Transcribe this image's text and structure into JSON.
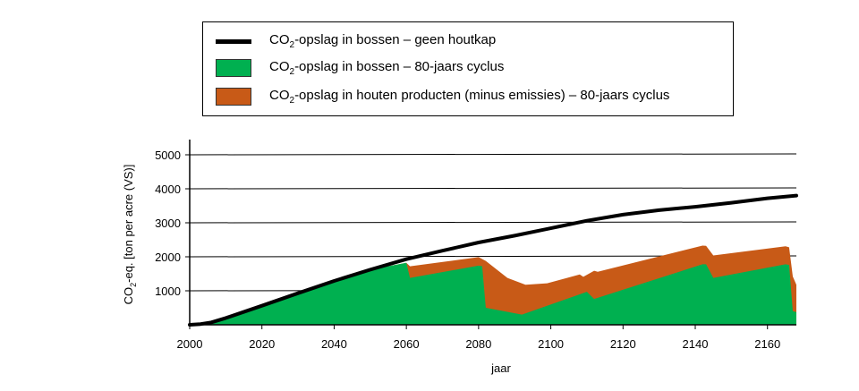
{
  "chart_data": {
    "type": "area",
    "xlabel": "jaar",
    "ylabel": "CO2-eq. [ton per acre (VS)]",
    "xlim": [
      2000,
      2168
    ],
    "ylim": [
      0,
      5300
    ],
    "x_ticks": [
      2000,
      2020,
      2040,
      2060,
      2080,
      2100,
      2120,
      2140,
      2160
    ],
    "y_ticks": [
      1000,
      2000,
      3000,
      4000,
      5000
    ],
    "grid": "horizontal",
    "legend_position": "top",
    "series": [
      {
        "name_parts": [
          "CO",
          "2",
          "-opslag in bossen – geen houtkap"
        ],
        "kind": "line",
        "color": "#000000",
        "points": [
          [
            2000,
            0
          ],
          [
            2003,
            20
          ],
          [
            2006,
            70
          ],
          [
            2010,
            200
          ],
          [
            2020,
            560
          ],
          [
            2030,
            930
          ],
          [
            2040,
            1290
          ],
          [
            2050,
            1620
          ],
          [
            2060,
            1930
          ],
          [
            2070,
            2180
          ],
          [
            2080,
            2420
          ],
          [
            2090,
            2620
          ],
          [
            2100,
            2840
          ],
          [
            2110,
            3060
          ],
          [
            2120,
            3240
          ],
          [
            2130,
            3370
          ],
          [
            2140,
            3470
          ],
          [
            2150,
            3590
          ],
          [
            2160,
            3720
          ],
          [
            2168,
            3800
          ]
        ]
      },
      {
        "name_parts": [
          "CO",
          "2",
          "-opslag in houten producten (minus emissies) – 80-jaars cyclus"
        ],
        "kind": "area",
        "color": "#c85a17",
        "points": [
          [
            2000,
            0
          ],
          [
            2003,
            20
          ],
          [
            2006,
            70
          ],
          [
            2010,
            200
          ],
          [
            2020,
            560
          ],
          [
            2030,
            930
          ],
          [
            2040,
            1290
          ],
          [
            2050,
            1620
          ],
          [
            2060,
            1820
          ],
          [
            2061,
            1720
          ],
          [
            2080,
            1990
          ],
          [
            2082,
            1880
          ],
          [
            2088,
            1380
          ],
          [
            2093,
            1180
          ],
          [
            2099,
            1220
          ],
          [
            2108,
            1480
          ],
          [
            2109,
            1410
          ],
          [
            2112,
            1590
          ],
          [
            2113,
            1560
          ],
          [
            2142,
            2330
          ],
          [
            2143,
            2320
          ],
          [
            2145,
            2040
          ],
          [
            2165,
            2310
          ],
          [
            2166,
            2280
          ],
          [
            2167,
            1420
          ],
          [
            2168,
            1180
          ],
          [
            2168,
            0
          ]
        ]
      },
      {
        "name_parts": [
          "CO",
          "2",
          "-opslag in bossen – 80-jaars cyclus"
        ],
        "kind": "area",
        "color": "#00b050",
        "points": [
          [
            2000,
            0
          ],
          [
            2003,
            20
          ],
          [
            2006,
            70
          ],
          [
            2010,
            200
          ],
          [
            2020,
            560
          ],
          [
            2030,
            930
          ],
          [
            2040,
            1290
          ],
          [
            2050,
            1620
          ],
          [
            2060,
            1820
          ],
          [
            2061,
            1380
          ],
          [
            2080,
            1740
          ],
          [
            2081,
            1720
          ],
          [
            2082,
            500
          ],
          [
            2092,
            300
          ],
          [
            2110,
            970
          ],
          [
            2112,
            760
          ],
          [
            2142,
            1780
          ],
          [
            2143,
            1780
          ],
          [
            2145,
            1380
          ],
          [
            2165,
            1780
          ],
          [
            2166,
            1760
          ],
          [
            2167,
            400
          ],
          [
            2168,
            370
          ],
          [
            2168,
            0
          ]
        ]
      }
    ]
  }
}
